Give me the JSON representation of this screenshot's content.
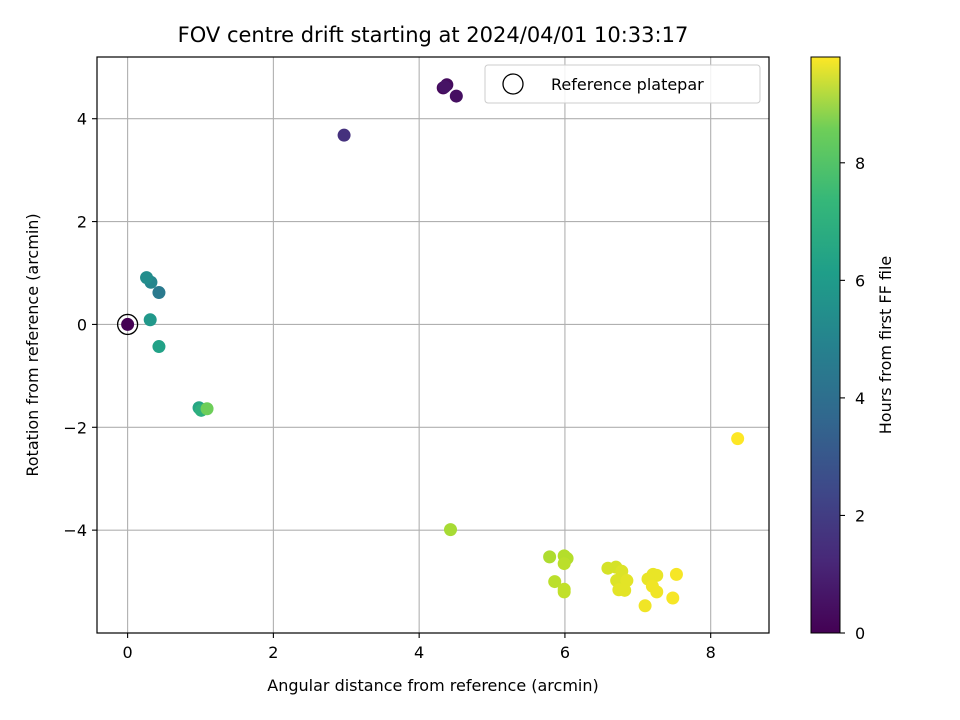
{
  "chart_data": {
    "type": "scatter",
    "title": "FOV centre drift starting at 2024/04/01 10:33:17",
    "xlabel": "Angular distance from reference (arcmin)",
    "ylabel": "Rotation from reference (arcmin)",
    "xlim": [
      -0.42,
      8.8
    ],
    "ylim": [
      -6.0,
      5.2
    ],
    "xticks": [
      0,
      2,
      4,
      6,
      8
    ],
    "yticks": [
      -4,
      -2,
      0,
      2,
      4
    ],
    "grid": true,
    "legend": {
      "location": "top-right",
      "entries": [
        {
          "label": "Reference platepar",
          "marker": "open-circle"
        }
      ]
    },
    "reference_point": {
      "x": 0,
      "y": 0
    },
    "colorbar": {
      "label": "Hours from first FF file",
      "colormap": "viridis",
      "range": [
        0,
        9.8
      ],
      "ticks": [
        0,
        2,
        4,
        6,
        8
      ]
    },
    "points": [
      {
        "x": 0.0,
        "y": 0.0,
        "h": 0.0
      },
      {
        "x": 4.33,
        "y": 4.6,
        "h": 0.2
      },
      {
        "x": 4.38,
        "y": 4.66,
        "h": 0.3
      },
      {
        "x": 4.51,
        "y": 4.44,
        "h": 0.4
      },
      {
        "x": 4.35,
        "y": 4.62,
        "h": 0.5
      },
      {
        "x": 2.97,
        "y": 3.68,
        "h": 1.4
      },
      {
        "x": 0.43,
        "y": 0.62,
        "h": 4.0
      },
      {
        "x": 0.32,
        "y": 0.82,
        "h": 4.5
      },
      {
        "x": 0.26,
        "y": 0.91,
        "h": 4.8
      },
      {
        "x": 0.31,
        "y": 0.09,
        "h": 5.2
      },
      {
        "x": 0.43,
        "y": -0.43,
        "h": 5.6
      },
      {
        "x": 0.98,
        "y": -1.62,
        "h": 5.8
      },
      {
        "x": 1.01,
        "y": -1.67,
        "h": 6.2
      },
      {
        "x": 1.09,
        "y": -1.64,
        "h": 7.6
      },
      {
        "x": 4.43,
        "y": -3.99,
        "h": 8.5
      },
      {
        "x": 5.79,
        "y": -4.52,
        "h": 8.6
      },
      {
        "x": 5.99,
        "y": -4.5,
        "h": 8.7
      },
      {
        "x": 6.03,
        "y": -4.55,
        "h": 8.7
      },
      {
        "x": 5.99,
        "y": -4.65,
        "h": 8.8
      },
      {
        "x": 5.86,
        "y": -5.0,
        "h": 8.8
      },
      {
        "x": 5.99,
        "y": -5.15,
        "h": 8.9
      },
      {
        "x": 5.99,
        "y": -5.2,
        "h": 8.9
      },
      {
        "x": 6.59,
        "y": -4.74,
        "h": 9.2
      },
      {
        "x": 6.7,
        "y": -4.72,
        "h": 9.2
      },
      {
        "x": 6.78,
        "y": -4.8,
        "h": 9.3
      },
      {
        "x": 6.71,
        "y": -4.98,
        "h": 9.3
      },
      {
        "x": 6.85,
        "y": -4.98,
        "h": 9.4
      },
      {
        "x": 6.74,
        "y": -5.16,
        "h": 9.4
      },
      {
        "x": 6.82,
        "y": -5.17,
        "h": 9.4
      },
      {
        "x": 7.21,
        "y": -4.86,
        "h": 9.5
      },
      {
        "x": 7.26,
        "y": -4.88,
        "h": 9.5
      },
      {
        "x": 7.14,
        "y": -4.95,
        "h": 9.5
      },
      {
        "x": 7.2,
        "y": -5.09,
        "h": 9.6
      },
      {
        "x": 7.26,
        "y": -5.2,
        "h": 9.6
      },
      {
        "x": 7.1,
        "y": -5.47,
        "h": 9.6
      },
      {
        "x": 7.48,
        "y": -5.32,
        "h": 9.7
      },
      {
        "x": 7.53,
        "y": -4.86,
        "h": 9.7
      },
      {
        "x": 8.37,
        "y": -2.22,
        "h": 9.8
      }
    ]
  }
}
